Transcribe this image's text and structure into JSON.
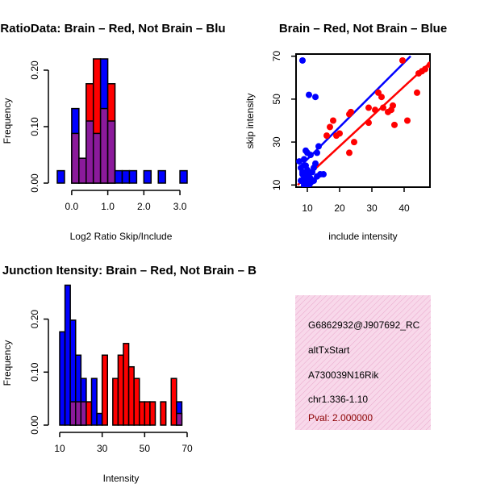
{
  "chart_data": [
    {
      "id": "ratio_hist",
      "type": "bar",
      "title": "RatioData: Brain – Red, Not Brain – Blu",
      "xlabel": "Log2 Ratio Skip/Include",
      "ylabel": "Frequency",
      "xlim": [
        -0.4,
        3.2
      ],
      "ylim": [
        0,
        0.24
      ],
      "xticks": [
        0.0,
        1.0,
        2.0,
        3.0
      ],
      "xtick_labels": [
        "0.0",
        "1.0",
        "2.0",
        "3.0"
      ],
      "yticks": [
        0.0,
        0.1,
        0.2
      ],
      "ytick_labels": [
        "0.00",
        "0.10",
        "0.20"
      ],
      "bin_width": 0.2,
      "series": [
        {
          "name": "Not Brain",
          "color": "#0000ff",
          "bins": [
            {
              "x0": -0.4,
              "y": 0.022
            },
            {
              "x0": -0.2,
              "y": 0.0
            },
            {
              "x0": 0.0,
              "y": 0.132
            },
            {
              "x0": 0.2,
              "y": 0.044
            },
            {
              "x0": 0.4,
              "y": 0.11
            },
            {
              "x0": 0.6,
              "y": 0.088
            },
            {
              "x0": 0.8,
              "y": 0.22
            },
            {
              "x0": 1.0,
              "y": 0.11
            },
            {
              "x0": 1.2,
              "y": 0.022
            },
            {
              "x0": 1.4,
              "y": 0.022
            },
            {
              "x0": 1.6,
              "y": 0.022
            },
            {
              "x0": 1.8,
              "y": 0.0
            },
            {
              "x0": 2.0,
              "y": 0.022
            },
            {
              "x0": 2.2,
              "y": 0.0
            },
            {
              "x0": 2.4,
              "y": 0.022
            },
            {
              "x0": 2.6,
              "y": 0.0
            },
            {
              "x0": 2.8,
              "y": 0.0
            },
            {
              "x0": 3.0,
              "y": 0.022
            }
          ]
        },
        {
          "name": "Brain",
          "color": "#ff0000",
          "bins": [
            {
              "x0": -0.2,
              "y": 0.0
            },
            {
              "x0": 0.0,
              "y": 0.088
            },
            {
              "x0": 0.2,
              "y": 0.044
            },
            {
              "x0": 0.4,
              "y": 0.176
            },
            {
              "x0": 0.6,
              "y": 0.22
            },
            {
              "x0": 0.8,
              "y": 0.132
            },
            {
              "x0": 1.0,
              "y": 0.176
            },
            {
              "x0": 1.2,
              "y": 0.0
            }
          ]
        }
      ],
      "overlap_color": "#8b1a9b"
    },
    {
      "id": "scatter",
      "type": "scatter",
      "title": "Brain – Red, Not Brain – Blue",
      "xlabel": "include intensity",
      "ylabel": "skip intensity",
      "xlim": [
        6.5,
        48
      ],
      "ylim": [
        9,
        71
      ],
      "xticks": [
        10,
        20,
        30,
        40
      ],
      "yticks": [
        10,
        30,
        50,
        70
      ],
      "series": [
        {
          "name": "Not Brain",
          "color": "#0000ff",
          "points": [
            [
              8.5,
              68
            ],
            [
              10.5,
              52
            ],
            [
              12.5,
              51
            ],
            [
              9,
              22
            ],
            [
              9.5,
              26
            ],
            [
              10,
              25
            ],
            [
              11,
              24
            ],
            [
              8,
              18
            ],
            [
              8.5,
              15
            ],
            [
              9,
              14
            ],
            [
              9.5,
              12
            ],
            [
              10,
              11
            ],
            [
              10.5,
              10
            ],
            [
              11,
              13
            ],
            [
              11.5,
              16
            ],
            [
              12,
              18
            ],
            [
              12.5,
              20
            ],
            [
              13,
              25
            ],
            [
              13.5,
              28
            ],
            [
              14,
              15
            ],
            [
              8,
              12
            ],
            [
              9,
              10
            ],
            [
              9.5,
              19
            ],
            [
              10,
              17
            ],
            [
              10.5,
              14
            ],
            [
              11,
              11
            ],
            [
              7.5,
              21
            ],
            [
              8.5,
              16
            ],
            [
              12,
              12
            ],
            [
              13,
              14
            ],
            [
              15,
              15
            ],
            [
              9,
              13
            ],
            [
              10,
              15
            ]
          ],
          "fit": [
            [
              8,
              19
            ],
            [
              42,
              70
            ]
          ]
        },
        {
          "name": "Brain",
          "color": "#ff0000",
          "points": [
            [
              16,
              33
            ],
            [
              17,
              37
            ],
            [
              18,
              40
            ],
            [
              19,
              33
            ],
            [
              20,
              34
            ],
            [
              23,
              43
            ],
            [
              23.5,
              44
            ],
            [
              23,
              25
            ],
            [
              24.5,
              30
            ],
            [
              29,
              39
            ],
            [
              29,
              46
            ],
            [
              31,
              45
            ],
            [
              32,
              53
            ],
            [
              33,
              51
            ],
            [
              33.5,
              46
            ],
            [
              35,
              44
            ],
            [
              36,
              45
            ],
            [
              36.5,
              47
            ],
            [
              37,
              38
            ],
            [
              39.5,
              68
            ],
            [
              41,
              40
            ],
            [
              44,
              53
            ],
            [
              44.5,
              62
            ],
            [
              45.5,
              63
            ],
            [
              46.5,
              64
            ],
            [
              48,
              66
            ]
          ],
          "fit": [
            [
              7,
              10
            ],
            [
              48,
              67
            ]
          ]
        }
      ]
    },
    {
      "id": "intensity_hist",
      "type": "bar",
      "title": "Exon Junction Itensity: Brain – Red, Not Brain – B",
      "xlabel": "Intensity",
      "ylabel": "Frequency",
      "xlim": [
        10,
        70
      ],
      "ylim": [
        0,
        0.28
      ],
      "xticks": [
        10,
        30,
        50,
        70
      ],
      "yticks": [
        0.0,
        0.1,
        0.2
      ],
      "ytick_labels": [
        "0.00",
        "0.10",
        "0.20"
      ],
      "bin_width": 2.5,
      "series": [
        {
          "name": "Not Brain",
          "color": "#0000ff",
          "bins": [
            {
              "x0": 10.0,
              "y": 0.176
            },
            {
              "x0": 12.5,
              "y": 0.264
            },
            {
              "x0": 15.0,
              "y": 0.198
            },
            {
              "x0": 17.5,
              "y": 0.132
            },
            {
              "x0": 20.0,
              "y": 0.088
            },
            {
              "x0": 22.5,
              "y": 0.0
            },
            {
              "x0": 25.0,
              "y": 0.088
            },
            {
              "x0": 27.5,
              "y": 0.022
            },
            {
              "x0": 30.0,
              "y": 0.0
            },
            {
              "x0": 62.5,
              "y": 0.0
            },
            {
              "x0": 65.0,
              "y": 0.044
            }
          ]
        },
        {
          "name": "Brain",
          "color": "#ff0000",
          "bins": [
            {
              "x0": 15.0,
              "y": 0.044
            },
            {
              "x0": 17.5,
              "y": 0.044
            },
            {
              "x0": 20.0,
              "y": 0.044
            },
            {
              "x0": 22.5,
              "y": 0.044
            },
            {
              "x0": 25.0,
              "y": 0.0
            },
            {
              "x0": 27.5,
              "y": 0.0
            },
            {
              "x0": 30.0,
              "y": 0.132
            },
            {
              "x0": 32.5,
              "y": 0.0
            },
            {
              "x0": 35.0,
              "y": 0.088
            },
            {
              "x0": 37.5,
              "y": 0.132
            },
            {
              "x0": 40.0,
              "y": 0.154
            },
            {
              "x0": 42.5,
              "y": 0.11
            },
            {
              "x0": 45.0,
              "y": 0.088
            },
            {
              "x0": 47.5,
              "y": 0.044
            },
            {
              "x0": 50.0,
              "y": 0.044
            },
            {
              "x0": 52.5,
              "y": 0.044
            },
            {
              "x0": 55.0,
              "y": 0.0
            },
            {
              "x0": 57.5,
              "y": 0.044
            },
            {
              "x0": 60.0,
              "y": 0.0
            },
            {
              "x0": 62.5,
              "y": 0.088
            },
            {
              "x0": 65.0,
              "y": 0.022
            }
          ]
        }
      ],
      "overlap_color": "#8b1a9b"
    }
  ],
  "info_panel": {
    "lines": [
      {
        "text": "G6862932@J907692_RC",
        "color": "#000000"
      },
      {
        "text": "altTxStart",
        "color": "#000000"
      },
      {
        "text": "A730039N16Rik",
        "color": "#000000"
      },
      {
        "text": "chr1.336-1.10",
        "color": "#000000"
      },
      {
        "text": "Pval: 2.000000",
        "color": "#8b0000"
      }
    ],
    "fill_color": "#f8d8ea"
  }
}
